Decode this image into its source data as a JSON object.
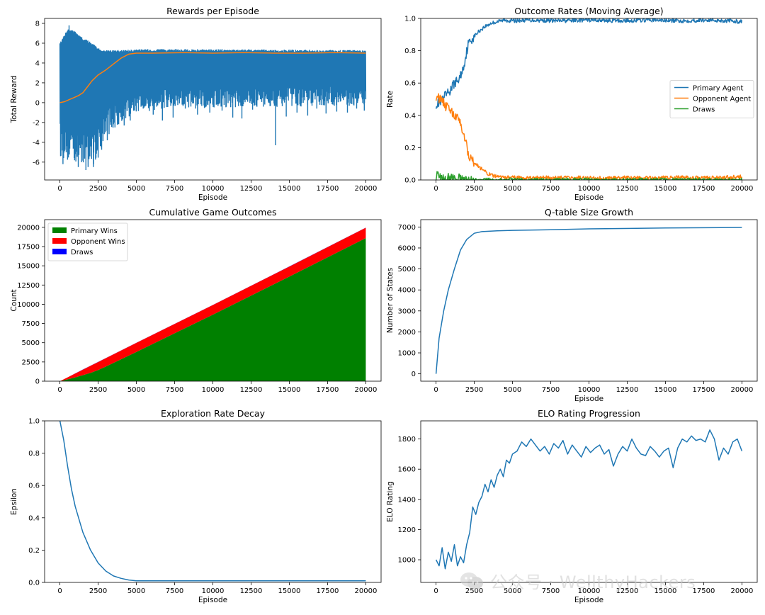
{
  "watermark": {
    "icon": "wechat-icon",
    "text": "公众号 · WellthyHackers"
  },
  "colors": {
    "blue": "#1f77b4",
    "orange": "#ff7f0e",
    "green": "#2ca02c",
    "wins": "#008000",
    "opp": "#ff0000",
    "draws": "#0000ff"
  },
  "chart_data": [
    {
      "id": "rewards",
      "type": "line",
      "title": "Rewards per Episode",
      "xlabel": "Episode",
      "ylabel": "Total Reward",
      "xlim": [
        -1000,
        21000
      ],
      "ylim": [
        -7.8,
        8.5
      ],
      "xticks": [
        0,
        2500,
        5000,
        7500,
        10000,
        12500,
        15000,
        17500,
        20000
      ],
      "yticks": [
        -6,
        -4,
        -2,
        0,
        2,
        4,
        6,
        8
      ],
      "series": [
        {
          "color": "#1f77b4",
          "band": {
            "x": [
              0,
              500,
              1000,
              1500,
              2000,
              2500,
              3000,
              4000,
              5000,
              10000,
              20000
            ],
            "low": [
              -5.5,
              -6.0,
              -6.3,
              -6.2,
              -6.8,
              -6.0,
              -3.5,
              -2.0,
              -1.0,
              -0.5,
              -0.3
            ],
            "high": [
              6.0,
              7.5,
              7.2,
              6.5,
              6.2,
              5.5,
              5.3,
              5.3,
              5.4,
              5.4,
              5.3
            ]
          },
          "spikes": [
            [
              200,
              -6.2
            ],
            [
              600,
              7.8
            ],
            [
              900,
              6.8
            ],
            [
              1200,
              -6.5
            ],
            [
              1700,
              -6.8
            ],
            [
              2200,
              -6.2
            ],
            [
              2700,
              -4.5
            ],
            [
              3100,
              -3.8
            ],
            [
              3600,
              -2.5
            ],
            [
              4200,
              -2.3
            ],
            [
              4600,
              -1.8
            ],
            [
              5500,
              -0.5
            ],
            [
              6100,
              -1.2
            ],
            [
              6700,
              -1.8
            ],
            [
              7400,
              -1.5
            ],
            [
              8200,
              -0.6
            ],
            [
              9000,
              -1.2
            ],
            [
              9800,
              -1.0
            ],
            [
              10600,
              -0.8
            ],
            [
              11300,
              -1.5
            ],
            [
              11900,
              -1.6
            ],
            [
              12600,
              -0.7
            ],
            [
              13300,
              -0.4
            ],
            [
              14100,
              -4.3
            ],
            [
              14800,
              -1.4
            ],
            [
              15500,
              -1.0
            ],
            [
              16200,
              -1.3
            ],
            [
              16800,
              -0.6
            ],
            [
              17400,
              -1.1
            ],
            [
              18100,
              -0.9
            ],
            [
              18800,
              -1.0
            ],
            [
              19400,
              -0.6
            ],
            [
              19900,
              -0.8
            ]
          ]
        },
        {
          "color": "#ff7f0e",
          "x": [
            0,
            300,
            600,
            900,
            1200,
            1500,
            1800,
            2100,
            2500,
            3000,
            3500,
            4000,
            4500,
            5000,
            6000,
            8000,
            10000,
            12000,
            14000,
            16000,
            18000,
            20000
          ],
          "y": [
            0.0,
            0.1,
            0.3,
            0.5,
            0.7,
            1.0,
            1.6,
            2.2,
            2.8,
            3.3,
            3.9,
            4.5,
            4.9,
            5.0,
            5.0,
            5.05,
            5.0,
            5.05,
            5.0,
            5.0,
            5.05,
            5.0
          ]
        }
      ]
    },
    {
      "id": "outcomes",
      "type": "line",
      "title": "Outcome Rates (Moving Average)",
      "xlabel": "Episode",
      "ylabel": "Rate",
      "xlim": [
        -1000,
        21000
      ],
      "ylim": [
        0,
        1.0
      ],
      "xticks": [
        0,
        2500,
        5000,
        7500,
        10000,
        12500,
        15000,
        17500,
        20000
      ],
      "yticks": [
        0.0,
        0.2,
        0.4,
        0.6,
        0.8,
        1.0
      ],
      "legend": "center-right",
      "series": [
        {
          "name": "Primary Agent",
          "color": "#1f77b4",
          "x": [
            0,
            300,
            600,
            900,
            1200,
            1500,
            1800,
            2100,
            2400,
            2800,
            3200,
            3600,
            4000,
            4500,
            5000,
            6000,
            8000,
            10000,
            12000,
            14000,
            16000,
            18000,
            20000
          ],
          "y": [
            0.47,
            0.48,
            0.52,
            0.55,
            0.6,
            0.62,
            0.7,
            0.84,
            0.88,
            0.92,
            0.95,
            0.97,
            0.98,
            0.99,
            0.985,
            0.99,
            0.985,
            0.99,
            0.985,
            0.99,
            0.985,
            0.99,
            0.98
          ]
        },
        {
          "name": "Opponent Agent",
          "color": "#ff7f0e",
          "x": [
            0,
            300,
            600,
            900,
            1200,
            1500,
            1800,
            2100,
            2400,
            2800,
            3200,
            3600,
            4000,
            4500,
            5000,
            6000,
            8000,
            10000,
            12000,
            14000,
            16000,
            18000,
            20000
          ],
          "y": [
            0.52,
            0.5,
            0.46,
            0.44,
            0.4,
            0.37,
            0.3,
            0.16,
            0.12,
            0.08,
            0.05,
            0.03,
            0.02,
            0.015,
            0.015,
            0.012,
            0.015,
            0.012,
            0.015,
            0.012,
            0.015,
            0.012,
            0.02
          ]
        },
        {
          "name": "Draws",
          "color": "#2ca02c",
          "x": [
            0,
            200,
            400,
            700,
            1000,
            1300,
            1600,
            2000,
            3000,
            20000
          ],
          "y": [
            0.03,
            0.015,
            0.01,
            0.012,
            0.02,
            0.005,
            0.01,
            0.0,
            0.0,
            0.0
          ]
        }
      ]
    },
    {
      "id": "cumulative",
      "type": "area",
      "title": "Cumulative Game Outcomes",
      "xlabel": "",
      "ylabel": "Count",
      "xlim": [
        -1000,
        21000
      ],
      "ylim": [
        0,
        21000
      ],
      "xticks": [
        0,
        2500,
        5000,
        7500,
        10000,
        12500,
        15000,
        17500,
        20000
      ],
      "yticks": [
        0,
        2500,
        5000,
        7500,
        10000,
        12500,
        15000,
        17500,
        20000
      ],
      "legend": "top-left",
      "x": [
        0,
        500,
        1000,
        1500,
        2000,
        2500,
        3000,
        5000,
        10000,
        15000,
        20000
      ],
      "series": [
        {
          "name": "Primary Wins",
          "color": "#008000",
          "values": [
            0,
            240,
            500,
            780,
            1080,
            1450,
            1900,
            3800,
            8650,
            13600,
            18600
          ]
        },
        {
          "name": "Opponent Wins",
          "color": "#ff0000",
          "values": [
            0,
            255,
            500,
            720,
            920,
            1040,
            1090,
            1180,
            1250,
            1300,
            1350
          ]
        },
        {
          "name": "Draws",
          "color": "#0000ff",
          "values": [
            0,
            5,
            10,
            14,
            17,
            18,
            18,
            18,
            18,
            18,
            18
          ]
        }
      ]
    },
    {
      "id": "qtable",
      "type": "line",
      "title": "Q-table Size Growth",
      "xlabel": "Episode",
      "ylabel": "Number of States",
      "xlim": [
        -1000,
        21000
      ],
      "ylim": [
        -350,
        7350
      ],
      "xticks": [
        0,
        2500,
        5000,
        7500,
        10000,
        12500,
        15000,
        17500,
        20000
      ],
      "yticks": [
        0,
        1000,
        2000,
        3000,
        4000,
        5000,
        6000,
        7000
      ],
      "series": [
        {
          "color": "#1f77b4",
          "x": [
            0,
            200,
            500,
            800,
            1200,
            1600,
            2000,
            2500,
            3000,
            4000,
            5000,
            7500,
            10000,
            15000,
            20000
          ],
          "y": [
            0,
            1700,
            3000,
            4000,
            5000,
            5900,
            6400,
            6700,
            6780,
            6820,
            6840,
            6870,
            6910,
            6950,
            6980
          ]
        }
      ]
    },
    {
      "id": "epsilon",
      "type": "line",
      "title": "Exploration Rate Decay",
      "xlabel": "Episode",
      "ylabel": "Epsilon",
      "xlim": [
        -1000,
        21000
      ],
      "ylim": [
        0,
        1.0
      ],
      "xticks": [
        0,
        2500,
        5000,
        7500,
        10000,
        12500,
        15000,
        17500,
        20000
      ],
      "yticks": [
        0.0,
        0.2,
        0.4,
        0.6,
        0.8,
        1.0
      ],
      "series": [
        {
          "color": "#1f77b4",
          "x": [
            0,
            250,
            500,
            750,
            1000,
            1500,
            2000,
            2500,
            3000,
            3500,
            4000,
            4500,
            5000,
            10000,
            20000
          ],
          "y": [
            1.0,
            0.88,
            0.72,
            0.58,
            0.47,
            0.31,
            0.2,
            0.12,
            0.07,
            0.04,
            0.025,
            0.015,
            0.01,
            0.01,
            0.01
          ]
        }
      ]
    },
    {
      "id": "elo",
      "type": "line",
      "title": "ELO Rating Progression",
      "xlabel": "Episode",
      "ylabel": "ELO Rating",
      "xlim": [
        -1000,
        21000
      ],
      "ylim": [
        850,
        1920
      ],
      "xticks": [
        0,
        2500,
        5000,
        7500,
        10000,
        12500,
        15000,
        17500,
        20000
      ],
      "yticks": [
        1000,
        1200,
        1400,
        1600,
        1800
      ],
      "series": [
        {
          "color": "#1f77b4",
          "x": [
            0,
            200,
            400,
            600,
            800,
            1000,
            1200,
            1400,
            1600,
            1800,
            2000,
            2200,
            2400,
            2600,
            2800,
            3000,
            3200,
            3400,
            3600,
            3800,
            4000,
            4200,
            4400,
            4600,
            4800,
            5000,
            5300,
            5600,
            5900,
            6200,
            6500,
            6800,
            7100,
            7400,
            7700,
            8000,
            8300,
            8600,
            8900,
            9200,
            9500,
            9800,
            10100,
            10400,
            10700,
            11000,
            11300,
            11600,
            11900,
            12200,
            12500,
            12800,
            13100,
            13400,
            13700,
            14000,
            14300,
            14600,
            14900,
            15200,
            15500,
            15800,
            16100,
            16400,
            16700,
            17000,
            17300,
            17600,
            17900,
            18200,
            18500,
            18800,
            19100,
            19400,
            19700,
            20000
          ],
          "y": [
            1000,
            960,
            1080,
            940,
            1050,
            990,
            1100,
            960,
            1020,
            980,
            1100,
            1180,
            1350,
            1300,
            1380,
            1420,
            1500,
            1450,
            1530,
            1480,
            1560,
            1600,
            1550,
            1660,
            1640,
            1700,
            1720,
            1780,
            1750,
            1800,
            1760,
            1720,
            1750,
            1700,
            1770,
            1740,
            1790,
            1700,
            1760,
            1720,
            1680,
            1750,
            1710,
            1740,
            1760,
            1700,
            1730,
            1620,
            1700,
            1750,
            1720,
            1800,
            1740,
            1700,
            1690,
            1750,
            1720,
            1680,
            1720,
            1740,
            1610,
            1740,
            1800,
            1780,
            1820,
            1790,
            1800,
            1780,
            1860,
            1800,
            1660,
            1740,
            1700,
            1780,
            1800,
            1720
          ]
        }
      ]
    }
  ]
}
